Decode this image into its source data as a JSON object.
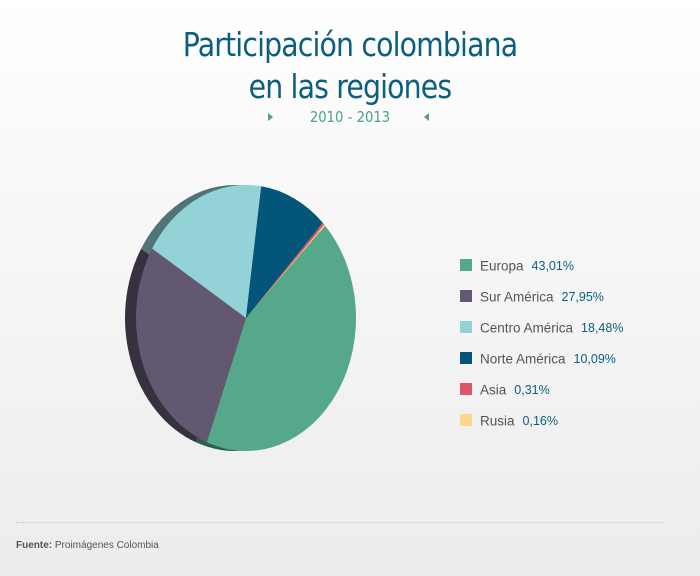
{
  "title_line1": "Participación colombiana",
  "title_line2": "en las regiones",
  "subtitle": "2010 - 2013",
  "source_label": "Fuente:",
  "source_text": "Proimágenes Colombia",
  "chart_data": {
    "type": "pie",
    "title": "Participación colombiana en las regiones",
    "subtitle": "2010 - 2013",
    "legend_position": "right",
    "slices": [
      {
        "label": "Europa",
        "value": 43.01,
        "display": "43,01%",
        "color": "#55a98a"
      },
      {
        "label": "Sur América",
        "value": 27.95,
        "display": "27,95%",
        "color": "#625872"
      },
      {
        "label": "Centro América",
        "value": 18.48,
        "display": "18,48%",
        "color": "#93d2d6"
      },
      {
        "label": "Norte América",
        "value": 10.09,
        "display": "10,09%",
        "color": "#04557a"
      },
      {
        "label": "Asia",
        "value": 0.31,
        "display": "0,31%",
        "color": "#e05565"
      },
      {
        "label": "Rusia",
        "value": 0.16,
        "display": "0,16%",
        "color": "#fbd88a"
      }
    ]
  }
}
